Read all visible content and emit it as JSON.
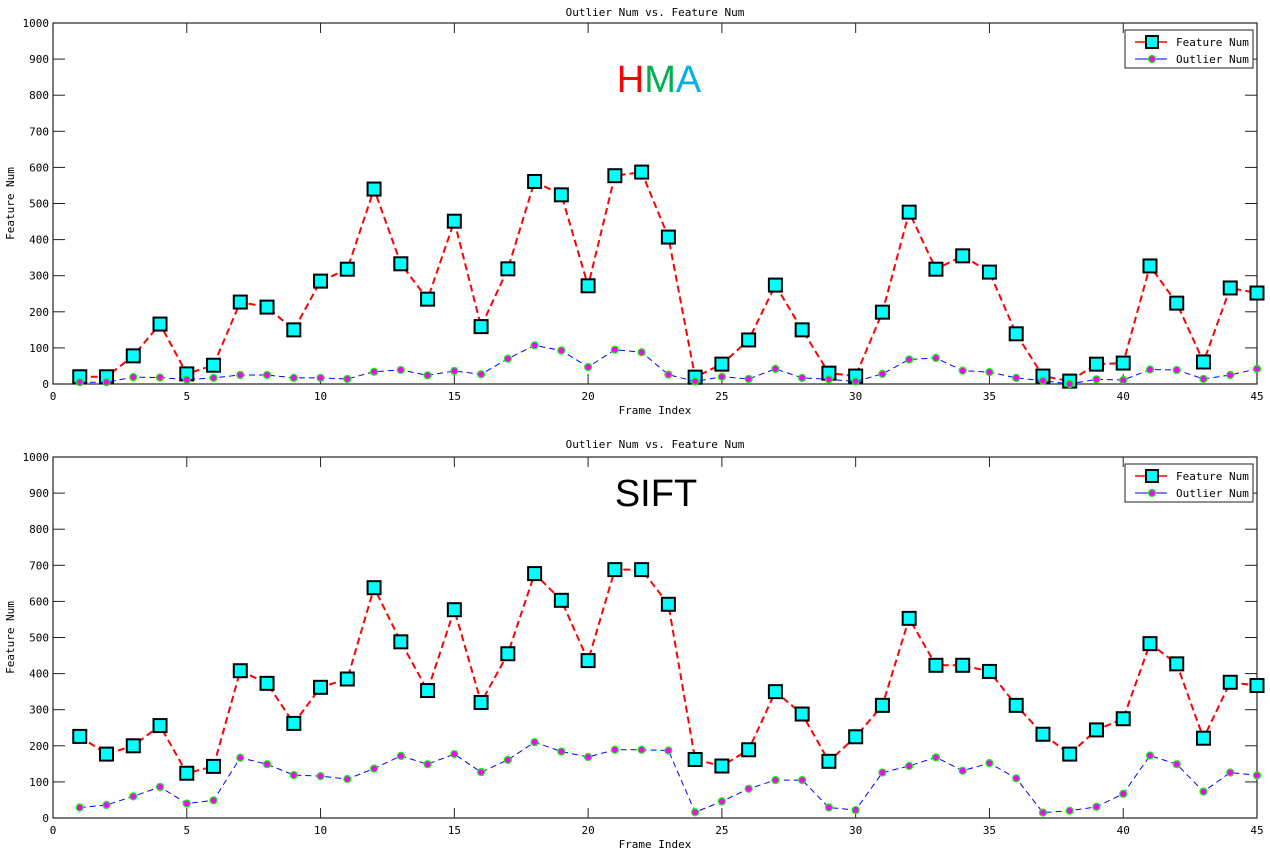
{
  "chart_data": [
    {
      "type": "line",
      "title": "Outlier Num vs. Feature Num",
      "annotation": {
        "text": "HMA",
        "letters": [
          {
            "char": "H",
            "color": "#ff0000"
          },
          {
            "char": "M",
            "color": "#00b050"
          },
          {
            "char": "A",
            "color": "#00b0f0"
          }
        ]
      },
      "xlabel": "Frame Index",
      "ylabel": "Feature Num",
      "xlim": [
        0,
        45
      ],
      "ylim": [
        0,
        1000
      ],
      "xticks": [
        0,
        5,
        10,
        15,
        20,
        25,
        30,
        35,
        40,
        45
      ],
      "yticks": [
        0,
        100,
        200,
        300,
        400,
        500,
        600,
        700,
        800,
        900,
        1000
      ],
      "grid": false,
      "legend_position": "top-right",
      "x": [
        1,
        2,
        3,
        4,
        5,
        6,
        7,
        8,
        9,
        10,
        11,
        12,
        13,
        14,
        15,
        16,
        17,
        18,
        19,
        20,
        21,
        22,
        23,
        24,
        25,
        26,
        27,
        28,
        29,
        30,
        31,
        32,
        33,
        34,
        35,
        36,
        37,
        38,
        39,
        40,
        41,
        42,
        43,
        44,
        45
      ],
      "series": [
        {
          "name": "Feature Num",
          "line_color": "#ff0000",
          "marker": "square",
          "marker_face": "#00ffff",
          "marker_edge": "#000000",
          "values": [
            20,
            20,
            78,
            166,
            28,
            52,
            227,
            213,
            150,
            285,
            318,
            540,
            333,
            235,
            451,
            159,
            319,
            561,
            524,
            272,
            577,
            587,
            407,
            19,
            55,
            122,
            274,
            150,
            30,
            22,
            199,
            476,
            318,
            355,
            310,
            139,
            22,
            8,
            55,
            58,
            327,
            224,
            61,
            266,
            252
          ]
        },
        {
          "name": "Outlier Num",
          "line_color": "#0000ff",
          "marker": "circle",
          "marker_face": "#ff00ff",
          "marker_edge": "#00ff00",
          "values": [
            5,
            5,
            19,
            18,
            12,
            17,
            25,
            25,
            17,
            17,
            14,
            34,
            39,
            24,
            36,
            27,
            70,
            107,
            93,
            47,
            95,
            88,
            26,
            7,
            20,
            14,
            42,
            17,
            13,
            7,
            28,
            68,
            72,
            37,
            33,
            17,
            9,
            0,
            13,
            11,
            40,
            39,
            14,
            25,
            42
          ]
        }
      ]
    },
    {
      "type": "line",
      "title": "Outlier Num vs. Feature Num",
      "annotation": {
        "text": "SIFT",
        "letters": [
          {
            "char": "SIFT",
            "color": "#000000"
          }
        ]
      },
      "xlabel": "Frame Index",
      "ylabel": "Feature Num",
      "xlim": [
        0,
        45
      ],
      "ylim": [
        0,
        1000
      ],
      "xticks": [
        0,
        5,
        10,
        15,
        20,
        25,
        30,
        35,
        40,
        45
      ],
      "yticks": [
        0,
        100,
        200,
        300,
        400,
        500,
        600,
        700,
        800,
        900,
        1000
      ],
      "grid": false,
      "legend_position": "top-right",
      "x": [
        1,
        2,
        3,
        4,
        5,
        6,
        7,
        8,
        9,
        10,
        11,
        12,
        13,
        14,
        15,
        16,
        17,
        18,
        19,
        20,
        21,
        22,
        23,
        24,
        25,
        26,
        27,
        28,
        29,
        30,
        31,
        32,
        33,
        34,
        35,
        36,
        37,
        38,
        39,
        40,
        41,
        42,
        43,
        44,
        45
      ],
      "series": [
        {
          "name": "Feature Num",
          "line_color": "#ff0000",
          "marker": "square",
          "marker_face": "#00ffff",
          "marker_edge": "#000000",
          "values": [
            226,
            177,
            200,
            256,
            124,
            143,
            408,
            373,
            262,
            362,
            385,
            638,
            488,
            353,
            577,
            320,
            455,
            677,
            603,
            436,
            688,
            688,
            592,
            162,
            144,
            189,
            350,
            288,
            157,
            225,
            312,
            553,
            423,
            423,
            406,
            312,
            232,
            177,
            244,
            275,
            483,
            427,
            221,
            376,
            367
          ]
        },
        {
          "name": "Outlier Num",
          "line_color": "#0000ff",
          "marker": "circle",
          "marker_face": "#ff00ff",
          "marker_edge": "#00ff00",
          "values": [
            29,
            36,
            60,
            86,
            40,
            49,
            167,
            149,
            119,
            116,
            108,
            137,
            172,
            149,
            177,
            127,
            161,
            210,
            184,
            169,
            189,
            189,
            187,
            16,
            46,
            81,
            105,
            105,
            29,
            22,
            126,
            144,
            168,
            131,
            152,
            110,
            15,
            20,
            31,
            67,
            173,
            149,
            73,
            126,
            118
          ]
        }
      ]
    }
  ]
}
